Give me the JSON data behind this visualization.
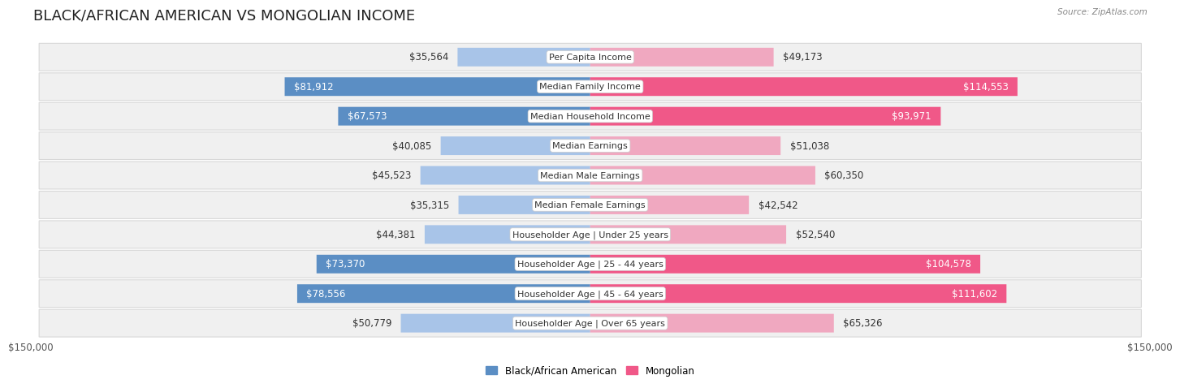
{
  "title": "BLACK/AFRICAN AMERICAN VS MONGOLIAN INCOME",
  "source": "Source: ZipAtlas.com",
  "categories": [
    "Per Capita Income",
    "Median Family Income",
    "Median Household Income",
    "Median Earnings",
    "Median Male Earnings",
    "Median Female Earnings",
    "Householder Age | Under 25 years",
    "Householder Age | 25 - 44 years",
    "Householder Age | 45 - 64 years",
    "Householder Age | Over 65 years"
  ],
  "black_values": [
    35564,
    81912,
    67573,
    40085,
    45523,
    35315,
    44381,
    73370,
    78556,
    50779
  ],
  "mongolian_values": [
    49173,
    114553,
    93971,
    51038,
    60350,
    42542,
    52540,
    104578,
    111602,
    65326
  ],
  "black_labels": [
    "$35,564",
    "$81,912",
    "$67,573",
    "$40,085",
    "$45,523",
    "$35,315",
    "$44,381",
    "$73,370",
    "$78,556",
    "$50,779"
  ],
  "mongolian_labels": [
    "$49,173",
    "$114,553",
    "$93,971",
    "$51,038",
    "$60,350",
    "$42,542",
    "$52,540",
    "$104,578",
    "$111,602",
    "$65,326"
  ],
  "black_color_light": "#a8c4e8",
  "black_color_dark": "#5b8ec4",
  "mongolian_color_light": "#f0a8c0",
  "mongolian_color_dark": "#f05888",
  "max_value": 150000,
  "axis_label_left": "$150,000",
  "axis_label_right": "$150,000",
  "background_color": "#ffffff",
  "row_bg_color": "#f0f0f0",
  "row_border_color": "#d8d8d8",
  "title_fontsize": 13,
  "label_fontsize": 8.5,
  "cat_fontsize": 8.0,
  "legend_label_black": "Black/African American",
  "legend_label_mongolian": "Mongolian",
  "black_threshold": 60000,
  "mongolian_threshold": 75000
}
